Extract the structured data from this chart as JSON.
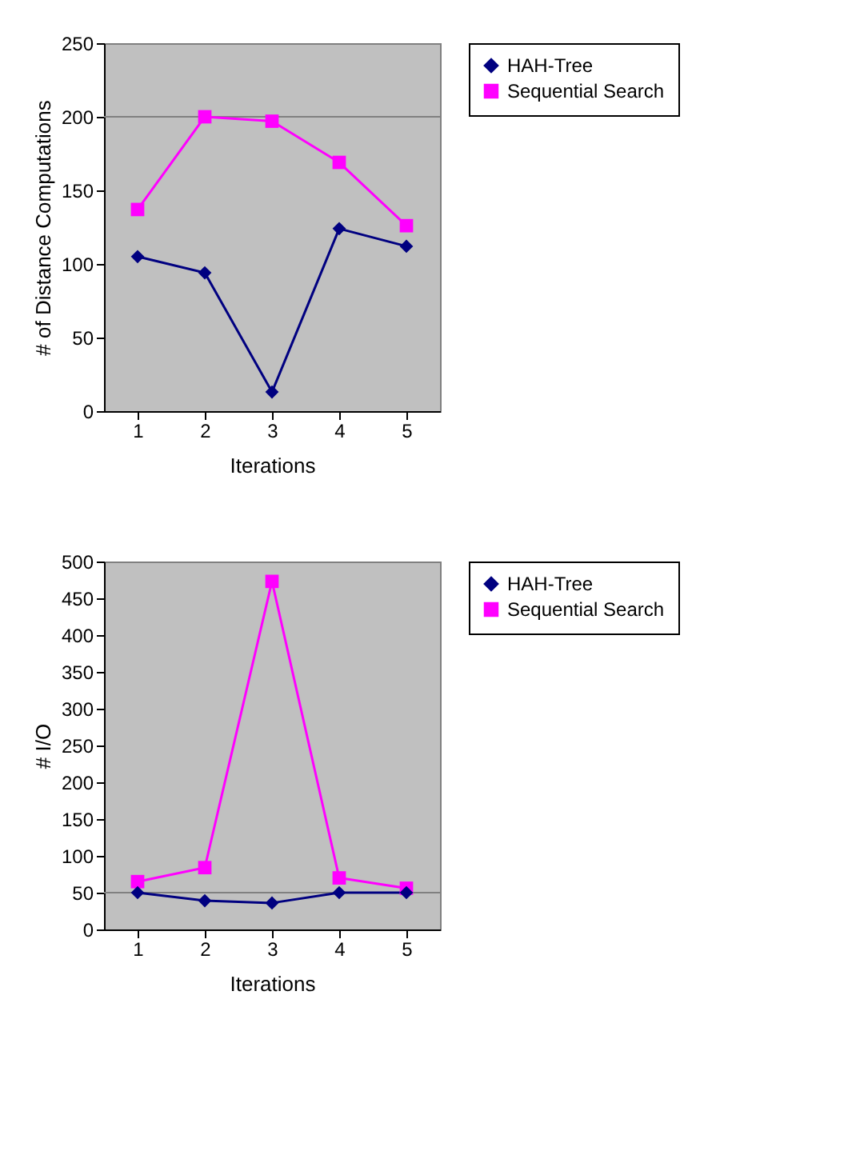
{
  "chart_data": [
    {
      "type": "line",
      "xlabel": "Iterations",
      "ylabel": "# of Distance Computations",
      "categories": [
        "1",
        "2",
        "3",
        "4",
        "5"
      ],
      "ylim": [
        0,
        250
      ],
      "yticks": [
        0,
        50,
        100,
        150,
        200,
        250
      ],
      "legend": "right",
      "grid": false,
      "ref_lines": [
        {
          "axis": "y",
          "value": 200,
          "color": "#808080"
        }
      ],
      "series": [
        {
          "name": "HAH-Tree",
          "color": "#000080",
          "marker": "diamond",
          "values": [
            105,
            94,
            13,
            124,
            112
          ]
        },
        {
          "name": "Sequential Search",
          "color": "#ff00ff",
          "marker": "square",
          "values": [
            137,
            200,
            197,
            169,
            126
          ]
        }
      ]
    },
    {
      "type": "line",
      "xlabel": "Iterations",
      "ylabel": "# I/O",
      "categories": [
        "1",
        "2",
        "3",
        "4",
        "5"
      ],
      "ylim": [
        0,
        500
      ],
      "yticks": [
        0,
        50,
        100,
        150,
        200,
        250,
        300,
        350,
        400,
        450,
        500
      ],
      "legend": "right",
      "grid": false,
      "ref_lines": [
        {
          "axis": "y",
          "value": 50,
          "color": "#808080"
        }
      ],
      "series": [
        {
          "name": "HAH-Tree",
          "color": "#000080",
          "marker": "diamond",
          "values": [
            50,
            39,
            36,
            50,
            50
          ]
        },
        {
          "name": "Sequential Search",
          "color": "#ff00ff",
          "marker": "square",
          "values": [
            65,
            84,
            473,
            70,
            56
          ]
        }
      ]
    }
  ]
}
